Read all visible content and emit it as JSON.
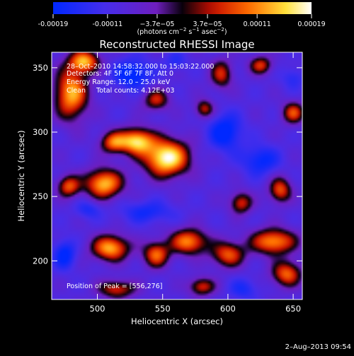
{
  "chart_data": {
    "type": "heatmap",
    "title": "Reconstructed RHESSI Image",
    "xlabel": "Heliocentric X (arcsec)",
    "ylabel": "Heliocentric Y (arcsec)",
    "xlim": [
      465,
      657
    ],
    "ylim": [
      170,
      362
    ],
    "x_ticks": [
      500,
      550,
      600,
      650
    ],
    "y_ticks": [
      200,
      250,
      300,
      350
    ],
    "colorbar": {
      "range": [
        -0.00019,
        0.00019
      ],
      "tick_values": [
        -0.00019,
        -0.00011,
        -3.7e-05,
        3.7e-05,
        0.00011,
        0.00019
      ],
      "tick_labels": [
        "-0.00019",
        "-0.00011",
        "−3.7e−05",
        "3.7e−05",
        "0.00011",
        "0.00019"
      ],
      "units_prefix": "(photons cm",
      "units_sup1": "−2",
      "units_mid": " s",
      "units_sup2": "−1",
      "units_mid2": " asec",
      "units_sup3": "−2",
      "units_suffix": ")"
    },
    "annotations": {
      "time_range": "28–Oct–2010 14:58:32.000 to 15:03:22.000",
      "detectors": "Detectors: 4F 5F 6F 7F 8F, Att 0",
      "energy": "Energy Range: 12.0 – 25.0 keV",
      "algorithm": "Clean     Total counts: 4.12E+03",
      "peak": "Position of Peak = [556,276]"
    },
    "sources": [
      {
        "x": 553,
        "y": 280,
        "sx": 12,
        "sy": 10,
        "v": 0.00019
      },
      {
        "x": 530,
        "y": 293,
        "sx": 9,
        "sy": 7,
        "v": 0.00015
      },
      {
        "x": 512,
        "y": 292,
        "sx": 7,
        "sy": 6,
        "v": 8e-05
      },
      {
        "x": 505,
        "y": 260,
        "sx": 10,
        "sy": 8,
        "v": 0.00014
      },
      {
        "x": 478,
        "y": 258,
        "sx": 6,
        "sy": 6,
        "v": 8e-05
      },
      {
        "x": 480,
        "y": 330,
        "sx": 9,
        "sy": 14,
        "v": 0.00013
      },
      {
        "x": 490,
        "y": 355,
        "sx": 8,
        "sy": 6,
        "v": 0.00012
      },
      {
        "x": 510,
        "y": 210,
        "sx": 10,
        "sy": 7,
        "v": 0.00013
      },
      {
        "x": 545,
        "y": 205,
        "sx": 7,
        "sy": 7,
        "v": 9e-05
      },
      {
        "x": 570,
        "y": 215,
        "sx": 10,
        "sy": 7,
        "v": 0.00011
      },
      {
        "x": 600,
        "y": 205,
        "sx": 9,
        "sy": 7,
        "v": 8e-05
      },
      {
        "x": 635,
        "y": 215,
        "sx": 12,
        "sy": 7,
        "v": 0.00012
      },
      {
        "x": 645,
        "y": 190,
        "sx": 8,
        "sy": 7,
        "v": 9e-05
      },
      {
        "x": 640,
        "y": 255,
        "sx": 6,
        "sy": 7,
        "v": 8e-05
      },
      {
        "x": 610,
        "y": 245,
        "sx": 6,
        "sy": 6,
        "v": 6e-05
      },
      {
        "x": 650,
        "y": 315,
        "sx": 6,
        "sy": 6,
        "v": 7e-05
      },
      {
        "x": 595,
        "y": 345,
        "sx": 6,
        "sy": 8,
        "v": 5e-05
      },
      {
        "x": 625,
        "y": 352,
        "sx": 6,
        "sy": 5,
        "v": 6e-05
      },
      {
        "x": 545,
        "y": 325,
        "sx": 7,
        "sy": 6,
        "v": 5e-05
      },
      {
        "x": 582,
        "y": 318,
        "sx": 5,
        "sy": 5,
        "v": 5e-05
      },
      {
        "x": 515,
        "y": 178,
        "sx": 10,
        "sy": 5,
        "v": 6e-05
      },
      {
        "x": 580,
        "y": 180,
        "sx": 7,
        "sy": 5,
        "v": 6e-05
      },
      {
        "x": 527,
        "y": 345,
        "sx": 10,
        "sy": 8,
        "v": -0.00012
      },
      {
        "x": 598,
        "y": 300,
        "sx": 9,
        "sy": 10,
        "v": -0.00012
      },
      {
        "x": 625,
        "y": 278,
        "sx": 10,
        "sy": 8,
        "v": -0.0001
      },
      {
        "x": 538,
        "y": 238,
        "sx": 14,
        "sy": 6,
        "v": -8e-05
      },
      {
        "x": 475,
        "y": 205,
        "sx": 6,
        "sy": 8,
        "v": -0.00011
      },
      {
        "x": 493,
        "y": 240,
        "sx": 7,
        "sy": 5,
        "v": -7e-05
      },
      {
        "x": 612,
        "y": 178,
        "sx": 8,
        "sy": 6,
        "v": -7e-05
      },
      {
        "x": 560,
        "y": 355,
        "sx": 6,
        "sy": 5,
        "v": -6e-05
      },
      {
        "x": 650,
        "y": 342,
        "sx": 6,
        "sy": 6,
        "v": -6e-05
      }
    ]
  },
  "footer_date": "2–Aug–2013 09:54"
}
